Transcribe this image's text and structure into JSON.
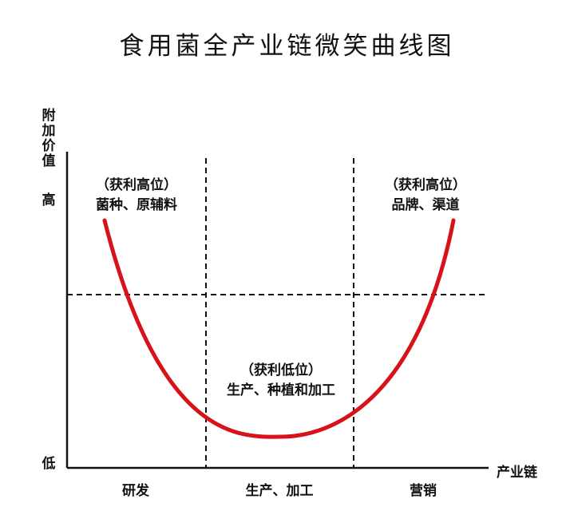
{
  "title": "食用菌全产业链微笑曲线图",
  "axes": {
    "y_label": "附加价值",
    "y_high": "高",
    "y_low": "低",
    "x_label": "产业链"
  },
  "categories": [
    "研发",
    "生产、加工",
    "营销"
  ],
  "annotations": [
    {
      "line1": "（获利高位）",
      "line2": "菌种、原辅料"
    },
    {
      "line1": "（获利低位）",
      "line2": "生产、种植和加工"
    },
    {
      "line1": "（获利高位）",
      "line2": "品牌、渠道"
    }
  ],
  "colors": {
    "curve": "#d8121b",
    "axis": "#111111",
    "dashed": "#111111"
  }
}
